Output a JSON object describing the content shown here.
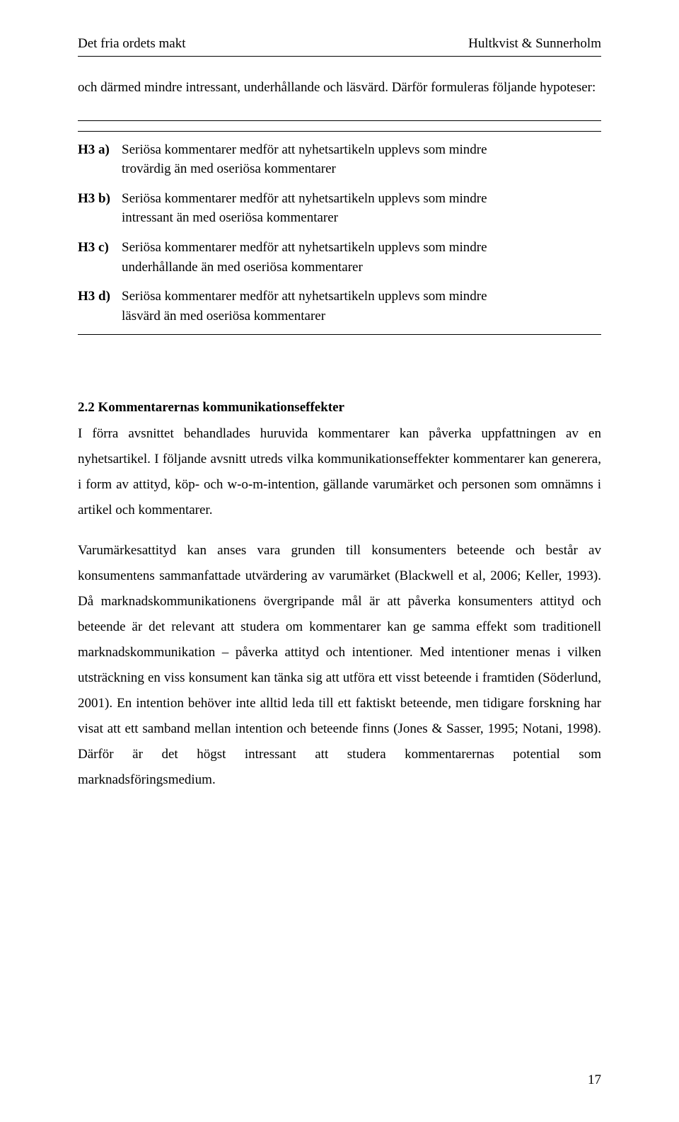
{
  "header": {
    "left": "Det fria ordets makt",
    "right": "Hultkvist & Sunnerholm"
  },
  "intro": "och därmed mindre intressant, underhållande och läsvärd. Därför formuleras följande hypoteser:",
  "hypotheses": {
    "h3a": {
      "label": "H3 a)",
      "text": "Seriösa kommentarer medför att nyhetsartikeln upplevs som mindre trovärdig än med oseriösa kommentarer"
    },
    "h3b": {
      "label": "H3 b)",
      "text": "Seriösa kommentarer medför att nyhetsartikeln upplevs som mindre intressant än med oseriösa kommentarer"
    },
    "h3c": {
      "label": "H3 c)",
      "text": "Seriösa kommentarer medför att nyhetsartikeln upplevs som mindre underhållande än med oseriösa kommentarer"
    },
    "h3d": {
      "label": "H3 d)",
      "text": "Seriösa kommentarer medför att nyhetsartikeln upplevs som mindre läsvärd än med oseriösa kommentarer"
    }
  },
  "section": {
    "heading": "2.2 Kommentarernas kommunikationseffekter",
    "p1": "I förra avsnittet behandlades huruvida kommentarer kan påverka uppfattningen av en nyhetsartikel. I följande avsnitt utreds vilka kommunikationseffekter kommentarer kan generera, i form av attityd, köp- och w-o-m-intention, gällande varumärket och personen som omnämns i artikel och kommentarer.",
    "p2": "Varumärkesattityd kan anses vara grunden till konsumenters beteende och består av konsumentens sammanfattade utvärdering av varumärket (Blackwell et al, 2006; Keller, 1993). Då marknadskommunikationens övergripande mål är att påverka konsumenters attityd och beteende är det relevant att studera om kommentarer kan ge samma effekt som traditionell marknadskommunikation – påverka attityd och intentioner. Med intentioner menas i vilken utsträckning en viss konsument kan tänka sig att utföra ett visst beteende i framtiden (Söderlund, 2001). En intention behöver inte alltid leda till ett faktiskt beteende, men tidigare forskning har visat att ett samband mellan intention och beteende finns (Jones & Sasser, 1995; Notani, 1998). Därför är det högst intressant att studera kommentarernas potential som marknadsföringsmedium."
  },
  "pageNumber": "17"
}
